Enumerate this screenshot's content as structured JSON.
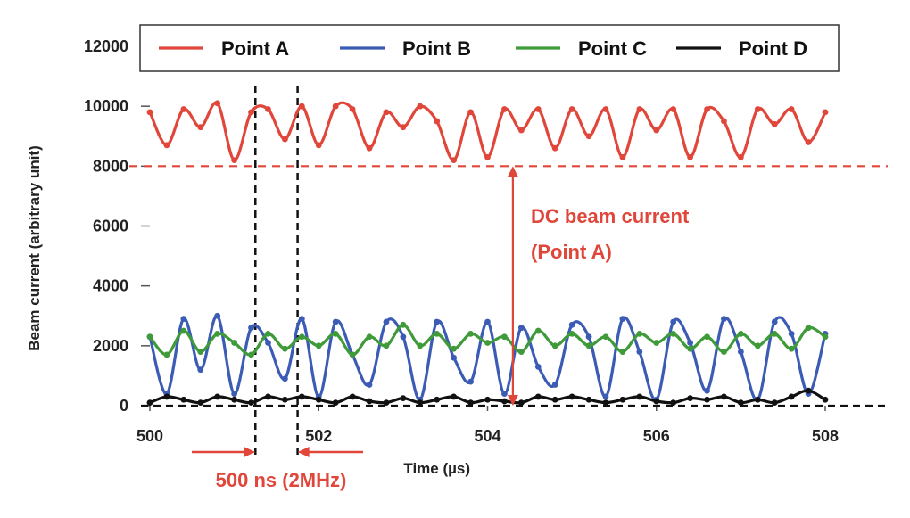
{
  "chart_data": {
    "type": "line",
    "title": "",
    "xlabel": "Time (µs)",
    "ylabel": "Beam current (arbitrary unit)",
    "xlim": [
      500,
      508
    ],
    "ylim": [
      0,
      12000
    ],
    "xticks": [
      "500",
      "502",
      "504",
      "506",
      "508"
    ],
    "yticks": [
      "0",
      "2000",
      "4000",
      "6000",
      "8000",
      "10000",
      "12000"
    ],
    "legend_position": "top",
    "x": [
      500.0,
      500.2,
      500.4,
      500.6,
      500.8,
      501.0,
      501.2,
      501.4,
      501.6,
      501.8,
      502.0,
      502.2,
      502.4,
      502.6,
      502.8,
      503.0,
      503.2,
      503.4,
      503.6,
      503.8,
      504.0,
      504.2,
      504.4,
      504.6,
      504.8,
      505.0,
      505.2,
      505.4,
      505.6,
      505.8,
      506.0,
      506.2,
      506.4,
      506.6,
      506.8,
      507.0,
      507.2,
      507.4,
      507.6,
      507.8,
      508.0
    ],
    "series": [
      {
        "name": "Point A",
        "color": "#e0463a",
        "values": [
          9800,
          8700,
          9900,
          9300,
          10100,
          8200,
          9800,
          9900,
          8900,
          10000,
          8700,
          10000,
          9900,
          8600,
          9800,
          9300,
          10000,
          9500,
          8200,
          9800,
          8300,
          9900,
          9200,
          9900,
          8600,
          9900,
          9000,
          9900,
          8300,
          9900,
          9200,
          9900,
          8300,
          9900,
          9500,
          8300,
          9900,
          9400,
          9900,
          8800,
          9800
        ]
      },
      {
        "name": "Point B",
        "color": "#3b5bb5",
        "values": [
          2300,
          400,
          2900,
          1200,
          3000,
          400,
          2600,
          2100,
          900,
          2900,
          300,
          2800,
          1700,
          700,
          2800,
          2300,
          200,
          2800,
          1600,
          800,
          2800,
          400,
          2600,
          1300,
          700,
          2700,
          2300,
          300,
          2900,
          1800,
          200,
          2800,
          2100,
          500,
          2900,
          1800,
          200,
          2800,
          2400,
          400,
          2400
        ]
      },
      {
        "name": "Point C",
        "color": "#3f9a3a",
        "values": [
          2300,
          1700,
          2500,
          1800,
          2400,
          2100,
          1700,
          2400,
          1900,
          2300,
          2000,
          2400,
          1700,
          2300,
          2000,
          2700,
          2000,
          2400,
          1900,
          2400,
          2100,
          2300,
          1800,
          2500,
          2000,
          2400,
          2000,
          2300,
          1800,
          2400,
          2100,
          2400,
          1900,
          2300,
          1800,
          2400,
          2000,
          2400,
          1900,
          2600,
          2300
        ]
      },
      {
        "name": "Point D",
        "color": "#111111",
        "values": [
          100,
          300,
          200,
          100,
          300,
          200,
          100,
          300,
          200,
          300,
          200,
          100,
          300,
          150,
          100,
          250,
          100,
          200,
          300,
          100,
          200,
          150,
          100,
          300,
          200,
          300,
          200,
          100,
          200,
          300,
          150,
          100,
          250,
          200,
          300,
          100,
          200,
          100,
          300,
          500,
          200
        ]
      }
    ],
    "reference_lines": [
      {
        "orientation": "horizontal",
        "value": 8000,
        "color": "#e0463a",
        "style": "dashed"
      },
      {
        "orientation": "horizontal",
        "value": 0,
        "color": "#111111",
        "style": "dashed"
      },
      {
        "orientation": "vertical",
        "value": 501.25,
        "color": "#111111",
        "style": "dashed"
      },
      {
        "orientation": "vertical",
        "value": 501.75,
        "color": "#111111",
        "style": "dashed"
      }
    ],
    "annotations": {
      "dc_label_line1": "DC beam current",
      "dc_label_line2": "(Point A)",
      "dc_arrow_x": 504.3,
      "dc_arrow_from": 8000,
      "dc_arrow_to": 0,
      "period_label": "500 ns (2MHz)",
      "annotation_color": "#e0463a"
    }
  }
}
